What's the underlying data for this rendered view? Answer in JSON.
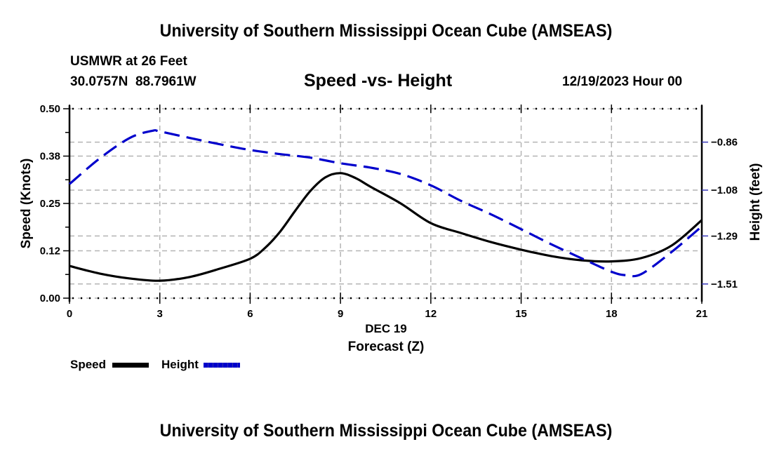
{
  "header": {
    "title": "University of Southern Mississippi Ocean Cube (AMSEAS)",
    "station": "USMWR at 26 Feet",
    "coords": "30.0757N  88.7961W",
    "subtitle": "Speed -vs- Height",
    "datetime": "12/19/2023 Hour 00"
  },
  "footer": {
    "title": "University of Southern Mississippi Ocean Cube (AMSEAS)"
  },
  "legend": {
    "items": [
      {
        "label": "Speed",
        "color": "#000000",
        "style": "solid"
      },
      {
        "label": "Height",
        "color": "#0000cc",
        "style": "dashed"
      }
    ]
  },
  "chart_data": {
    "type": "line",
    "title": "Speed -vs- Height",
    "xlabel": "Forecast (Z)",
    "xsublabel": "DEC 19",
    "ylabel": "Speed (Knots)",
    "y2label": "Height (feet)",
    "xlim": [
      0,
      21
    ],
    "ylim": [
      0.0,
      0.5
    ],
    "y2lim": [
      -1.575,
      -0.707
    ],
    "xticks": [
      0,
      3,
      6,
      9,
      12,
      15,
      18,
      21
    ],
    "xtick_labels": [
      "0",
      "3",
      "6",
      "9",
      "12",
      "15",
      "18",
      "21"
    ],
    "yticks": [
      0.0,
      0.125,
      0.25,
      0.375,
      0.5
    ],
    "ytick_labels": [
      "0.00",
      "0.12",
      "0.25",
      "0.38",
      "0.50"
    ],
    "y2ticks": [
      -0.86,
      -1.08,
      -1.29,
      -1.51
    ],
    "y2tick_labels": [
      "−0.86",
      "−1.08",
      "−1.29",
      "−1.51"
    ],
    "grid": true,
    "legend_position": "bottom-left",
    "series": [
      {
        "name": "Speed",
        "axis": "left",
        "color": "#000000",
        "style": "solid",
        "x": [
          0,
          1,
          2,
          3,
          4,
          5,
          6,
          6.5,
          7,
          7.5,
          8,
          8.5,
          9,
          9.5,
          10,
          11,
          12,
          13,
          14,
          15,
          16,
          17,
          18,
          19,
          20,
          21
        ],
        "values": [
          0.085,
          0.065,
          0.052,
          0.046,
          0.056,
          0.078,
          0.104,
          0.133,
          0.176,
          0.231,
          0.283,
          0.319,
          0.33,
          0.317,
          0.294,
          0.25,
          0.198,
          0.172,
          0.148,
          0.128,
          0.111,
          0.1,
          0.097,
          0.106,
          0.139,
          0.206
        ]
      },
      {
        "name": "Height",
        "axis": "right",
        "color": "#0000cc",
        "style": "dashed",
        "x": [
          0,
          1,
          2,
          2.75,
          3,
          4,
          5,
          6,
          7,
          8,
          9,
          10,
          11,
          12,
          13,
          14,
          15,
          16,
          17,
          18,
          18.5,
          19,
          20,
          21
        ],
        "values": [
          -1.052,
          -0.935,
          -0.841,
          -0.808,
          -0.811,
          -0.841,
          -0.87,
          -0.896,
          -0.915,
          -0.931,
          -0.957,
          -0.977,
          -1.006,
          -1.058,
          -1.129,
          -1.191,
          -1.259,
          -1.328,
          -1.392,
          -1.454,
          -1.47,
          -1.464,
          -1.363,
          -1.246
        ]
      }
    ]
  }
}
